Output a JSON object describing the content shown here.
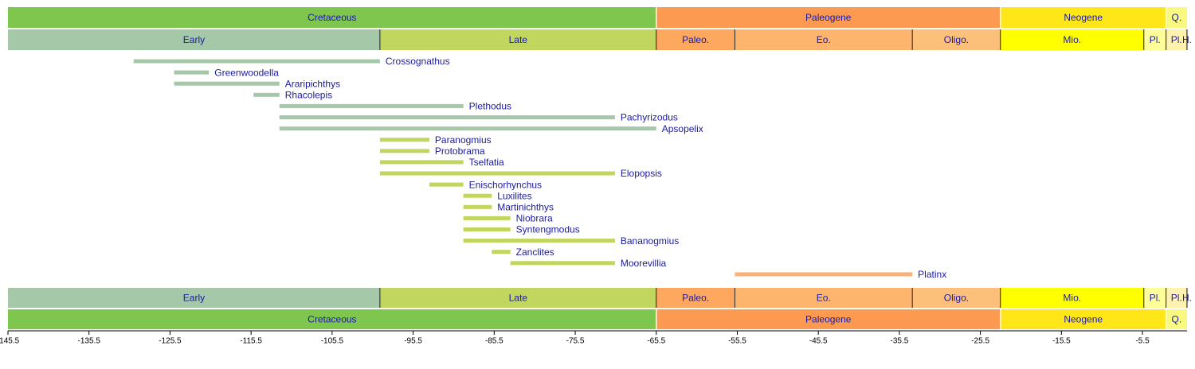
{
  "chart_data": {
    "type": "timeline",
    "xlim": [
      -145.5,
      0
    ],
    "xticks": [
      -145.5,
      -135.5,
      -125.5,
      -115.5,
      -105.5,
      -95.5,
      -85.5,
      -75.5,
      -65.5,
      -55.5,
      -45.5,
      -35.5,
      -25.5,
      -15.5,
      -5.5
    ],
    "periods": [
      {
        "name": "Cretaceous",
        "start": -145.5,
        "end": -65.5,
        "color": "#7fc64e"
      },
      {
        "name": "Paleogene",
        "start": -65.5,
        "end": -23.03,
        "color": "#fd9a52"
      },
      {
        "name": "Neogene",
        "start": -23.03,
        "end": -2.588,
        "color": "#ffe619"
      },
      {
        "name": "Q.",
        "start": -2.588,
        "end": 0,
        "color": "#f9f97f"
      }
    ],
    "epochs": [
      {
        "name": "Early",
        "start": -145.5,
        "end": -99.6,
        "color": "#a5c8a9"
      },
      {
        "name": "Late",
        "start": -99.6,
        "end": -65.5,
        "color": "#c0d65e"
      },
      {
        "name": "Paleo.",
        "start": -65.5,
        "end": -55.8,
        "color": "#fda75f"
      },
      {
        "name": "Eo.",
        "start": -55.8,
        "end": -33.9,
        "color": "#fdb46c"
      },
      {
        "name": "Oligo.",
        "start": -33.9,
        "end": -23.03,
        "color": "#fdc07a"
      },
      {
        "name": "Mio.",
        "start": -23.03,
        "end": -5.332,
        "color": "#ffff00"
      },
      {
        "name": "Pl.",
        "start": -5.332,
        "end": -2.588,
        "color": "#ffff99"
      },
      {
        "name": "Pl.",
        "start": -2.588,
        "end": -0.0117,
        "color": "#fff2ae"
      },
      {
        "name": "H.",
        "start": -0.0117,
        "end": 0,
        "color": "#feebd2"
      }
    ],
    "taxa": [
      {
        "name": "Crossognathus",
        "start": -130,
        "end": -99.6,
        "color": "#a5c8a9"
      },
      {
        "name": "Greenwoodella",
        "start": -125,
        "end": -120.7,
        "color": "#a5c8a9"
      },
      {
        "name": "Araripichthys",
        "start": -125,
        "end": -112,
        "color": "#a5c8a9"
      },
      {
        "name": "Rhacolepis",
        "start": -115.2,
        "end": -112,
        "color": "#a5c8a9"
      },
      {
        "name": "Plethodus",
        "start": -112,
        "end": -89.3,
        "color": "#a5c8a9"
      },
      {
        "name": "Pachyrizodus",
        "start": -112,
        "end": -70.6,
        "color": "#a5c8a9"
      },
      {
        "name": "Apsopelix",
        "start": -112,
        "end": -65.5,
        "color": "#a5c8a9"
      },
      {
        "name": "Paranogmius",
        "start": -99.6,
        "end": -93.5,
        "color": "#c0d65e"
      },
      {
        "name": "Protobrama",
        "start": -99.6,
        "end": -93.5,
        "color": "#c0d65e"
      },
      {
        "name": "Tselfatia",
        "start": -99.6,
        "end": -89.3,
        "color": "#c0d65e"
      },
      {
        "name": "Elopopsis",
        "start": -99.6,
        "end": -70.6,
        "color": "#c0d65e"
      },
      {
        "name": "Enischorhynchus",
        "start": -93.5,
        "end": -89.3,
        "color": "#c0d65e"
      },
      {
        "name": "Luxilites",
        "start": -89.3,
        "end": -85.8,
        "color": "#c0d65e"
      },
      {
        "name": "Martinichthys",
        "start": -89.3,
        "end": -85.8,
        "color": "#c0d65e"
      },
      {
        "name": "Niobrara",
        "start": -89.3,
        "end": -83.5,
        "color": "#c0d65e"
      },
      {
        "name": "Syntengmodus",
        "start": -89.3,
        "end": -83.5,
        "color": "#c0d65e"
      },
      {
        "name": "Bananogmius",
        "start": -89.3,
        "end": -70.6,
        "color": "#c0d65e"
      },
      {
        "name": "Zanclites",
        "start": -85.8,
        "end": -83.5,
        "color": "#c0d65e"
      },
      {
        "name": "Moorevillia",
        "start": -83.5,
        "end": -70.6,
        "color": "#c0d65e"
      },
      {
        "name": "Platinx",
        "start": -55.8,
        "end": -33.9,
        "color": "#f6b27a"
      }
    ]
  }
}
